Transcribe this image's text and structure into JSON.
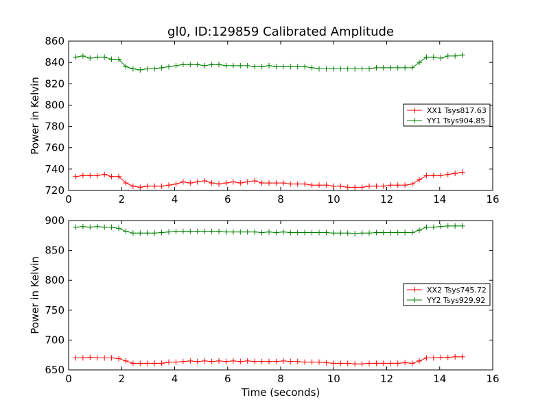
{
  "chart_data": [
    {
      "type": "line",
      "title": "gl0, ID:129859 Calibrated Amplitude",
      "xlabel": "",
      "ylabel": "Power in Kelvin",
      "xlim": [
        0,
        16
      ],
      "ylim": [
        720,
        860
      ],
      "xticks": [
        0,
        2,
        4,
        6,
        8,
        10,
        12,
        14,
        16
      ],
      "yticks": [
        720,
        740,
        760,
        780,
        800,
        820,
        840,
        860
      ],
      "grid": false,
      "legend_position": "center-right",
      "x": [
        0.27,
        0.54,
        0.81,
        1.08,
        1.35,
        1.62,
        1.89,
        2.16,
        2.43,
        2.7,
        2.97,
        3.24,
        3.51,
        3.78,
        4.05,
        4.32,
        4.59,
        4.86,
        5.13,
        5.4,
        5.67,
        5.94,
        6.21,
        6.48,
        6.75,
        7.02,
        7.29,
        7.56,
        7.83,
        8.1,
        8.37,
        8.64,
        8.91,
        9.18,
        9.45,
        9.72,
        9.99,
        10.26,
        10.53,
        10.8,
        11.07,
        11.34,
        11.61,
        11.88,
        12.15,
        12.42,
        12.69,
        12.96,
        13.23,
        13.5,
        13.77,
        14.04,
        14.31,
        14.58,
        14.85
      ],
      "series": [
        {
          "name": "XX1 Tsys817.63",
          "color": "#ff0000",
          "values": [
            733,
            734,
            734,
            734,
            735,
            733,
            733,
            727,
            724,
            723,
            724,
            724,
            724,
            725,
            726,
            728,
            727,
            728,
            729,
            727,
            726,
            727,
            728,
            727,
            728,
            729,
            727,
            727,
            727,
            727,
            726,
            726,
            726,
            725,
            725,
            725,
            724,
            724,
            723,
            723,
            723,
            724,
            724,
            724,
            725,
            725,
            725,
            726,
            730,
            734,
            734,
            734,
            735,
            736,
            737
          ]
        },
        {
          "name": "YY1 Tsys904.85",
          "color": "#008000",
          "values": [
            845,
            846,
            844,
            845,
            845,
            843,
            843,
            836,
            834,
            833,
            834,
            834,
            835,
            836,
            837,
            838,
            838,
            838,
            837,
            838,
            838,
            837,
            837,
            837,
            837,
            836,
            836,
            837,
            836,
            836,
            836,
            836,
            836,
            835,
            834,
            834,
            834,
            834,
            834,
            834,
            834,
            834,
            835,
            835,
            835,
            835,
            835,
            835,
            840,
            845,
            845,
            844,
            846,
            846,
            847
          ]
        }
      ]
    },
    {
      "type": "line",
      "title": "",
      "xlabel": "Time (seconds)",
      "ylabel": "Power in Kelvin",
      "xlim": [
        0,
        16
      ],
      "ylim": [
        650,
        900
      ],
      "xticks": [
        0,
        2,
        4,
        6,
        8,
        10,
        12,
        14,
        16
      ],
      "yticks": [
        650,
        700,
        750,
        800,
        850,
        900
      ],
      "grid": false,
      "legend_position": "center-right",
      "x": [
        0.27,
        0.54,
        0.81,
        1.08,
        1.35,
        1.62,
        1.89,
        2.16,
        2.43,
        2.7,
        2.97,
        3.24,
        3.51,
        3.78,
        4.05,
        4.32,
        4.59,
        4.86,
        5.13,
        5.4,
        5.67,
        5.94,
        6.21,
        6.48,
        6.75,
        7.02,
        7.29,
        7.56,
        7.83,
        8.1,
        8.37,
        8.64,
        8.91,
        9.18,
        9.45,
        9.72,
        9.99,
        10.26,
        10.53,
        10.8,
        11.07,
        11.34,
        11.61,
        11.88,
        12.15,
        12.42,
        12.69,
        12.96,
        13.23,
        13.5,
        13.77,
        14.04,
        14.31,
        14.58,
        14.85
      ],
      "series": [
        {
          "name": "XX2 Tsys745.72",
          "color": "#ff0000",
          "values": [
            670,
            670,
            671,
            670,
            670,
            670,
            669,
            665,
            661,
            661,
            661,
            661,
            661,
            663,
            663,
            664,
            665,
            664,
            665,
            664,
            665,
            664,
            665,
            664,
            665,
            664,
            664,
            664,
            664,
            665,
            664,
            664,
            663,
            663,
            663,
            662,
            661,
            661,
            661,
            660,
            660,
            661,
            661,
            661,
            661,
            661,
            662,
            661,
            665,
            670,
            670,
            671,
            671,
            672,
            672
          ]
        },
        {
          "name": "YY2 Tsys929.92",
          "color": "#008000",
          "values": [
            889,
            890,
            889,
            890,
            889,
            889,
            887,
            882,
            879,
            879,
            879,
            879,
            880,
            881,
            882,
            882,
            882,
            882,
            882,
            882,
            882,
            881,
            881,
            881,
            881,
            881,
            880,
            881,
            880,
            881,
            880,
            880,
            880,
            880,
            880,
            880,
            879,
            879,
            879,
            878,
            879,
            879,
            880,
            880,
            880,
            880,
            880,
            880,
            884,
            889,
            889,
            890,
            891,
            891,
            891
          ]
        }
      ]
    }
  ]
}
